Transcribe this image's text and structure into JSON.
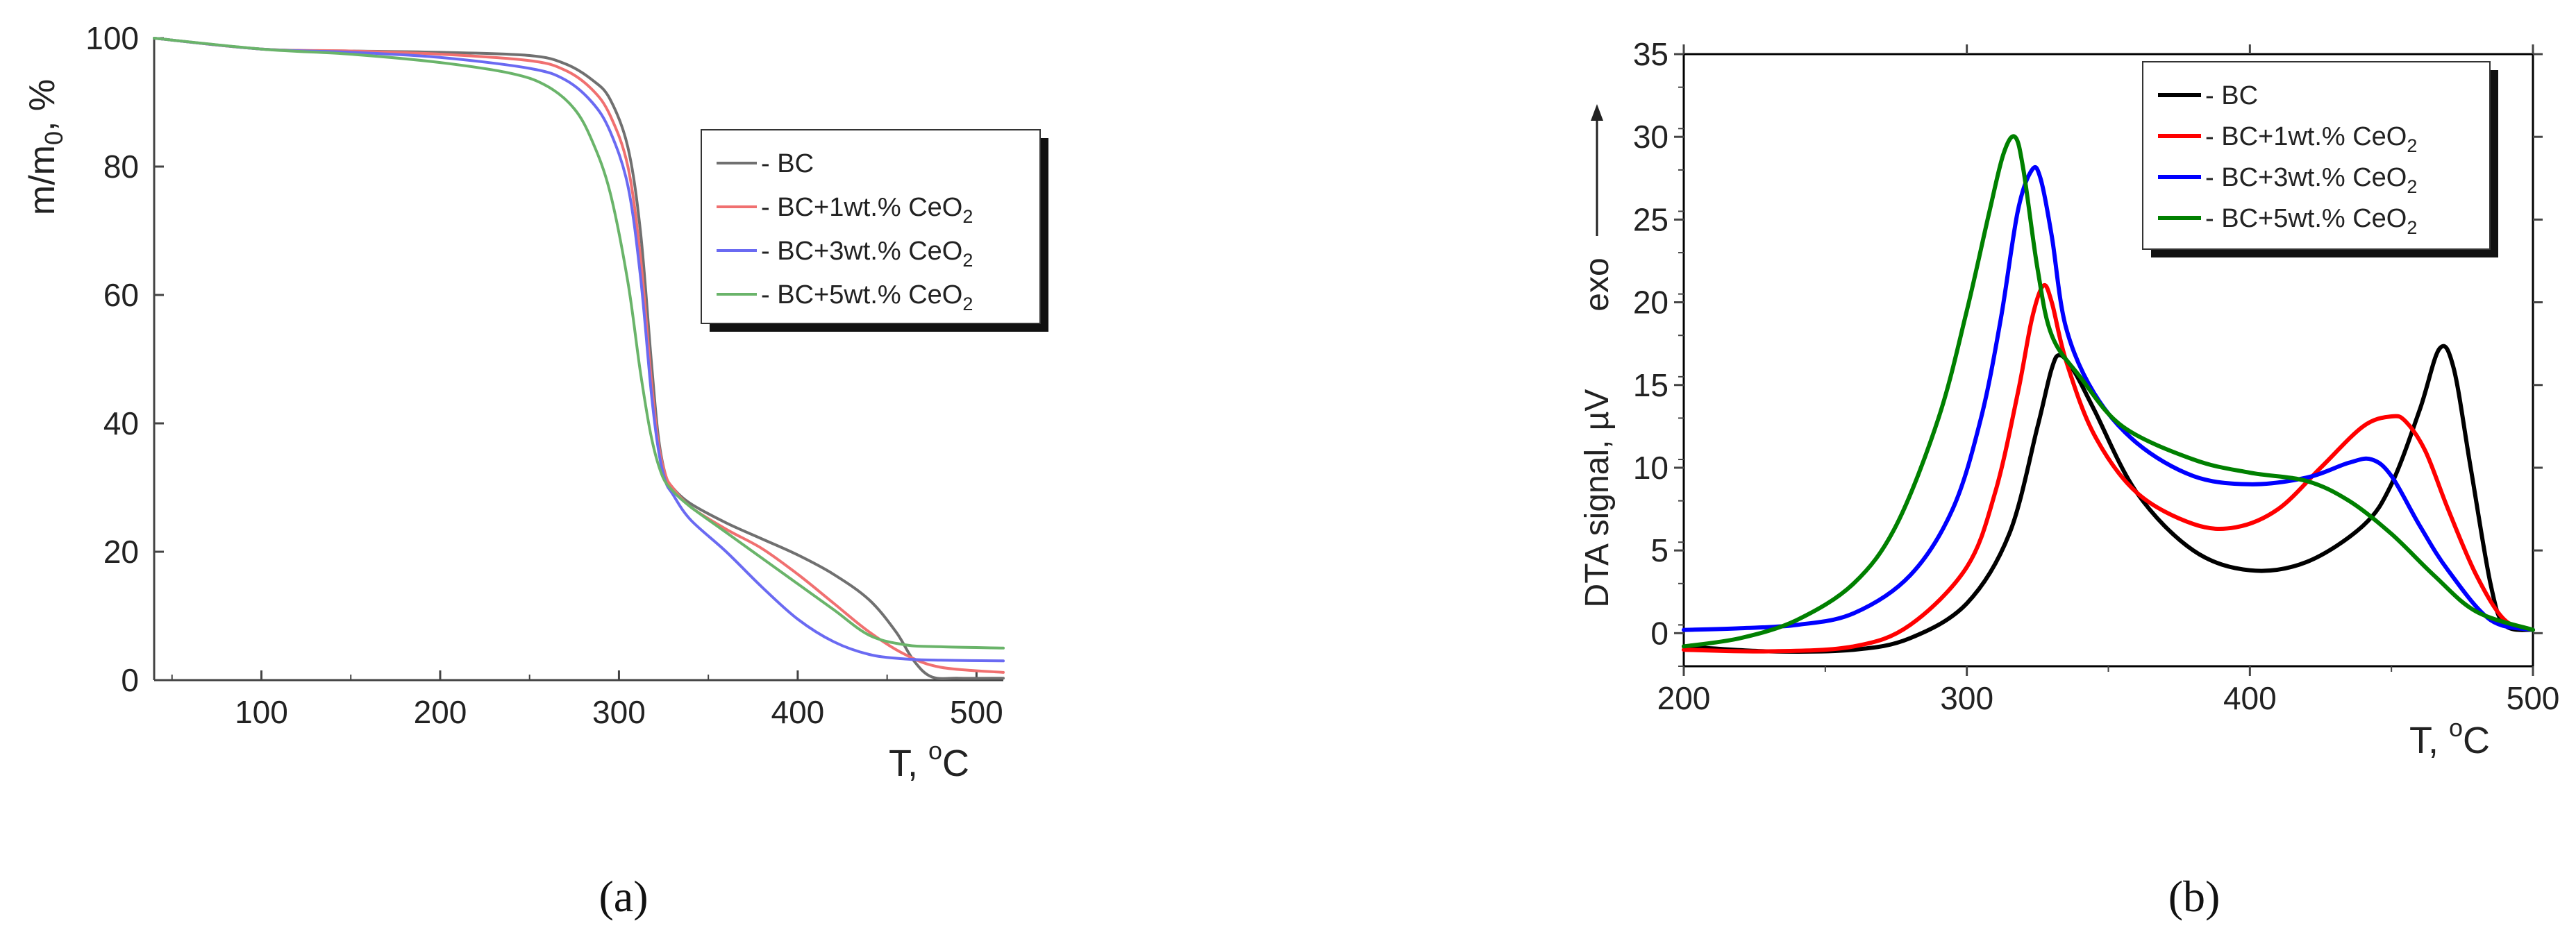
{
  "captions": {
    "a": "(a)",
    "b": "(b)"
  },
  "chart_data": [
    {
      "panel": "a",
      "type": "line",
      "title": "",
      "xlabel": "T, °C",
      "xlabel_parts": {
        "main": "T, ",
        "sup": "o",
        "unit": "C"
      },
      "ylabel": "m/m0, %",
      "ylabel_parts": {
        "main": "m/m",
        "sub": "0",
        "unit": ", %"
      },
      "xlim": [
        40,
        515
      ],
      "ylim": [
        0,
        100
      ],
      "xticks": [
        100,
        200,
        300,
        400,
        500
      ],
      "yticks": [
        0,
        20,
        40,
        60,
        80,
        100
      ],
      "legend_position": "upper-right",
      "series": [
        {
          "name": "- BC",
          "label": "BC",
          "color": "#707070",
          "x": [
            40,
            100,
            150,
            200,
            250,
            270,
            285,
            295,
            305,
            312,
            318,
            322,
            326,
            330,
            340,
            360,
            380,
            400,
            420,
            440,
            455,
            465,
            475,
            490,
            515
          ],
          "y": [
            100,
            98.3,
            98,
            97.8,
            97.3,
            96,
            93.5,
            90.5,
            83,
            70,
            50,
            38,
            32,
            30,
            27.5,
            24.5,
            22,
            19.5,
            16.5,
            12.5,
            7.5,
            3,
            0.5,
            0.3,
            0.3
          ]
        },
        {
          "name": "- BC+1wt.% CeO2",
          "label": "BC+1wt.% CeO",
          "sub": "2",
          "color": "#f07070",
          "x": [
            40,
            100,
            150,
            200,
            250,
            270,
            285,
            295,
            305,
            312,
            318,
            322,
            326,
            330,
            340,
            360,
            380,
            400,
            420,
            440,
            460,
            480,
            515
          ],
          "y": [
            100,
            98.3,
            98,
            97.5,
            96.5,
            95,
            92,
            88,
            80,
            66,
            47,
            37,
            32,
            30,
            27,
            23.5,
            20.5,
            16.5,
            12,
            7.5,
            4,
            2,
            1.2
          ]
        },
        {
          "name": "- BC+3wt.% CeO2",
          "label": "BC+3wt.% CeO",
          "sub": "2",
          "color": "#6a6af2",
          "x": [
            40,
            100,
            150,
            200,
            250,
            270,
            285,
            295,
            305,
            312,
            318,
            322,
            326,
            330,
            340,
            360,
            380,
            400,
            420,
            440,
            460,
            480,
            515
          ],
          "y": [
            100,
            98.3,
            97.8,
            97,
            95.3,
            93.5,
            90,
            85.5,
            77,
            63,
            45,
            36,
            31,
            29,
            25,
            20,
            14.5,
            9.5,
            6,
            4,
            3.3,
            3.1,
            3
          ]
        },
        {
          "name": "- BC+5wt.% CeO2",
          "label": "BC+5wt.% CeO",
          "sub": "2",
          "color": "#6ab46a",
          "x": [
            40,
            100,
            150,
            200,
            240,
            260,
            275,
            285,
            295,
            305,
            312,
            318,
            324,
            330,
            340,
            360,
            380,
            400,
            420,
            440,
            460,
            480,
            515
          ],
          "y": [
            100,
            98.3,
            97.5,
            96.2,
            94.5,
            92.5,
            89,
            84,
            76,
            62,
            48,
            38,
            32,
            29.5,
            27,
            23,
            19,
            15,
            11,
            7,
            5.5,
            5.2,
            5
          ]
        }
      ]
    },
    {
      "panel": "b",
      "type": "line",
      "title": "",
      "xlabel": "T, °C",
      "xlabel_parts": {
        "main": "T, ",
        "sup": "o",
        "unit": "C"
      },
      "ylabel": "DTA signal, µV",
      "ylabel_side": "exo",
      "xlim": [
        200,
        500
      ],
      "ylim": [
        -2,
        35
      ],
      "xticks": [
        200,
        300,
        400,
        500
      ],
      "yticks": [
        0,
        5,
        10,
        15,
        20,
        25,
        30,
        35
      ],
      "legend_position": "top-right",
      "series": [
        {
          "name": "- BC",
          "label": "BC",
          "color": "#000000",
          "x": [
            200,
            230,
            260,
            280,
            300,
            315,
            325,
            330,
            333,
            338,
            345,
            360,
            380,
            400,
            420,
            440,
            450,
            460,
            467,
            472,
            478,
            485,
            490,
            500
          ],
          "y": [
            -0.8,
            -1.1,
            -1,
            -0.3,
            1.8,
            6,
            12.5,
            16,
            16.8,
            15.8,
            13.5,
            8.5,
            5,
            3.8,
            4.3,
            6.5,
            9,
            13.5,
            17.2,
            16,
            10,
            3,
            0.5,
            0.2
          ]
        },
        {
          "name": "- BC+1wt.% CeO2",
          "label": "BC+1wt.% CeO",
          "sub": "2",
          "color": "#ff0000",
          "x": [
            200,
            230,
            260,
            280,
            300,
            310,
            318,
            323,
            327,
            330,
            335,
            345,
            360,
            380,
            395,
            410,
            425,
            440,
            450,
            455,
            462,
            470,
            480,
            490,
            500
          ],
          "y": [
            -1,
            -1.1,
            -0.8,
            0.5,
            4,
            8.5,
            14.5,
            19,
            21,
            20,
            16.5,
            12,
            8.5,
            6.6,
            6.4,
            7.5,
            10,
            12.5,
            13.1,
            12.8,
            11,
            7.5,
            3.5,
            0.8,
            0.2
          ]
        },
        {
          "name": "- BC+3wt.% CeO2",
          "label": "BC+3wt.% CeO",
          "sub": "2",
          "color": "#0000ff",
          "x": [
            200,
            220,
            240,
            260,
            280,
            295,
            305,
            312,
            318,
            323,
            326,
            330,
            335,
            345,
            360,
            380,
            400,
            420,
            435,
            443,
            450,
            460,
            470,
            485,
            500
          ],
          "y": [
            0.2,
            0.3,
            0.5,
            1.2,
            3.5,
            7.5,
            13,
            19,
            25.5,
            28,
            27.5,
            24,
            18.5,
            14.5,
            11.5,
            9.5,
            9,
            9.4,
            10.3,
            10.5,
            9.5,
            6.5,
            3.8,
            0.8,
            0.2
          ]
        },
        {
          "name": "- BC+5wt.% CeO2",
          "label": "BC+5wt.% CeO",
          "sub": "2",
          "color": "#008000",
          "x": [
            200,
            220,
            240,
            260,
            275,
            290,
            300,
            308,
            313,
            317,
            320,
            325,
            330,
            340,
            355,
            380,
            400,
            420,
            435,
            450,
            465,
            480,
            500
          ],
          "y": [
            -0.8,
            -0.3,
            0.8,
            3,
            6.5,
            13,
            19.5,
            25.5,
            29,
            30,
            28,
            22,
            18,
            15.5,
            12.5,
            10.5,
            9.7,
            9.2,
            8,
            6,
            3.5,
            1.3,
            0.2
          ]
        }
      ]
    }
  ]
}
